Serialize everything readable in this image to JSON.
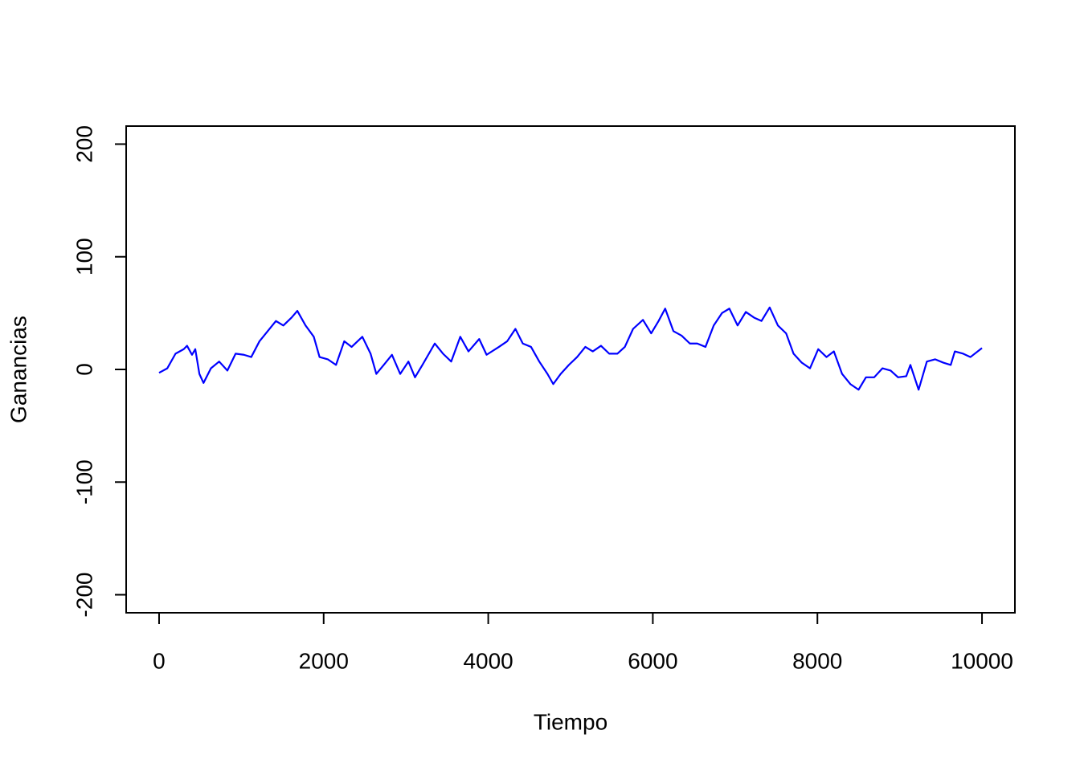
{
  "chart_data": {
    "type": "line",
    "xlabel": "Tiempo",
    "ylabel": "Ganancias",
    "color": "#0000ff",
    "x": [
      0,
      100,
      200,
      300,
      340,
      400,
      440,
      490,
      540,
      630,
      730,
      830,
      930,
      1030,
      1120,
      1220,
      1320,
      1420,
      1510,
      1610,
      1680,
      1780,
      1880,
      1950,
      2050,
      2150,
      2250,
      2340,
      2470,
      2570,
      2640,
      2730,
      2830,
      2930,
      3030,
      3110,
      3200,
      3350,
      3450,
      3550,
      3660,
      3760,
      3890,
      3980,
      4130,
      4230,
      4330,
      4420,
      4520,
      4620,
      4720,
      4790,
      4880,
      4980,
      5080,
      5180,
      5270,
      5370,
      5470,
      5570,
      5660,
      5760,
      5880,
      5980,
      6070,
      6150,
      6250,
      6350,
      6450,
      6540,
      6640,
      6740,
      6840,
      6930,
      7030,
      7130,
      7230,
      7320,
      7420,
      7520,
      7620,
      7710,
      7810,
      7910,
      8010,
      8110,
      8200,
      8300,
      8400,
      8500,
      8590,
      8690,
      8790,
      8890,
      8980,
      9080,
      9130,
      9230,
      9330,
      9430,
      9530,
      9620,
      9670,
      9770,
      9860,
      10000
    ],
    "values": [
      -3,
      1,
      14,
      18,
      21,
      13,
      18,
      -4,
      -12,
      1,
      7,
      -1,
      14,
      13,
      11,
      25,
      34,
      43,
      39,
      46,
      52,
      39,
      29,
      11,
      9,
      4,
      25,
      20,
      29,
      14,
      -4,
      4,
      13,
      -4,
      7,
      -7,
      4,
      23,
      14,
      7,
      29,
      16,
      27,
      13,
      20,
      25,
      36,
      23,
      20,
      7,
      -4,
      -13,
      -4,
      4,
      11,
      20,
      16,
      21,
      14,
      14,
      20,
      36,
      44,
      32,
      43,
      54,
      34,
      30,
      23,
      23,
      20,
      39,
      50,
      54,
      39,
      51,
      46,
      43,
      55,
      39,
      32,
      14,
      6,
      1,
      18,
      11,
      16,
      -4,
      -13,
      -18,
      -7,
      -7,
      1,
      -1,
      -7,
      -6,
      4,
      -18,
      7,
      9,
      6,
      4,
      16,
      14,
      11,
      19
    ],
    "xlim": [
      -400,
      10400
    ],
    "ylim": [
      -216,
      216
    ],
    "xticks": [
      0,
      2000,
      4000,
      6000,
      8000,
      10000
    ],
    "yticks": [
      -200,
      -100,
      0,
      100,
      200
    ]
  }
}
